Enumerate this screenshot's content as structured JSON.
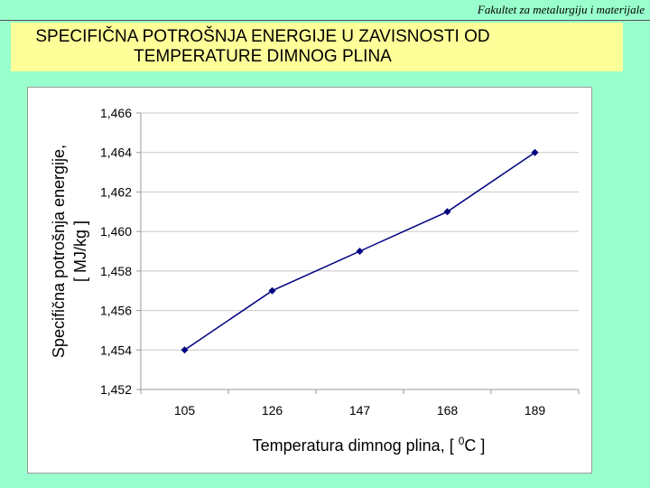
{
  "header": {
    "faculty": "Fakultet za metalurgiju i materijale"
  },
  "slide": {
    "title": "SPECIFIČNA POTROŠNJA ENERGIJE U ZAVISNOSTI OD TEMPERATURE DIMNOG PLINA"
  },
  "chart_data": {
    "type": "line",
    "categories": [
      "105",
      "126",
      "147",
      "168",
      "189"
    ],
    "x": [
      105,
      126,
      147,
      168,
      189
    ],
    "series": [
      {
        "values": [
          1.454,
          1.457,
          1.459,
          1.461,
          1.464
        ]
      }
    ],
    "ylabel_line1": "Specifična potrošnja energije,",
    "ylabel_line2": "[ MJ/kg ]",
    "xlabel_prefix": "Temperatura dimnog plina, [ ",
    "xlabel_sup": "0",
    "xlabel_suffix": "C ]",
    "ylim": [
      1.452,
      1.466
    ],
    "yticks": [
      1.452,
      1.454,
      1.456,
      1.458,
      1.46,
      1.462,
      1.464,
      1.466
    ],
    "ytick_labels": [
      "1,452",
      "1,454",
      "1,456",
      "1,458",
      "1,460",
      "1,462",
      "1,464",
      "1,466"
    ],
    "grid": true,
    "line_color": "#000080",
    "marker": "diamond"
  }
}
